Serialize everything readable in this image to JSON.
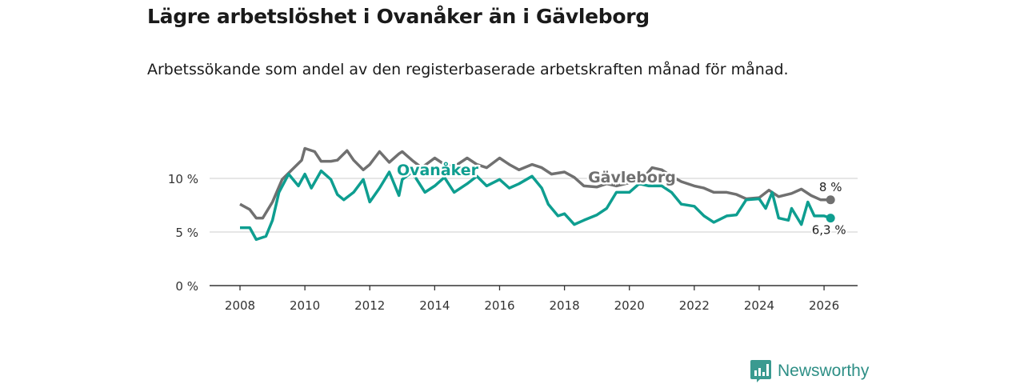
{
  "header": {
    "title": "Lägre arbetslöshet i Ovanåker än i Gävleborg",
    "subtitle": "Arbetssökande som andel av den registerbaserade arbetskraften månad för månad."
  },
  "brand": {
    "name": "Newsworthy",
    "icon": "bar-chart-speech-bubble-icon",
    "color": "#3a9a90"
  },
  "chart_data": {
    "type": "line",
    "title": "Lägre arbetslöshet i Ovanåker än i Gävleborg",
    "xlabel": "",
    "ylabel": "",
    "xlim": [
      2007.6,
      2027.0
    ],
    "ylim": [
      0,
      13
    ],
    "x_ticks": [
      2008,
      2010,
      2012,
      2014,
      2016,
      2018,
      2020,
      2022,
      2024,
      2026
    ],
    "x_tick_labels": [
      "2008",
      "2010",
      "2012",
      "2014",
      "2016",
      "2018",
      "2020",
      "2022",
      "2024",
      "2026"
    ],
    "y_ticks": [
      0,
      5,
      10
    ],
    "y_tick_labels": [
      "0 %",
      "5 %",
      "10 %"
    ],
    "grid": true,
    "series": [
      {
        "name": "Gävleborg",
        "color": "#707070",
        "end_label": "8 %",
        "x": [
          2008.0,
          2008.3,
          2008.5,
          2008.7,
          2009.0,
          2009.3,
          2009.6,
          2009.9,
          2010.0,
          2010.3,
          2010.5,
          2010.8,
          2011.0,
          2011.3,
          2011.5,
          2011.8,
          2012.0,
          2012.3,
          2012.6,
          2012.9,
          2013.0,
          2013.3,
          2013.6,
          2014.0,
          2014.3,
          2014.6,
          2015.0,
          2015.3,
          2015.6,
          2016.0,
          2016.3,
          2016.6,
          2017.0,
          2017.3,
          2017.6,
          2018.0,
          2018.3,
          2018.6,
          2019.0,
          2019.3,
          2019.6,
          2020.0,
          2020.4,
          2020.7,
          2021.0,
          2021.3,
          2021.6,
          2022.0,
          2022.3,
          2022.6,
          2023.0,
          2023.3,
          2023.6,
          2024.0,
          2024.3,
          2024.6,
          2025.0,
          2025.3,
          2025.6,
          2025.9,
          2026.2
        ],
        "values": [
          7.6,
          7.1,
          6.3,
          6.3,
          7.8,
          9.9,
          10.8,
          11.7,
          12.8,
          12.5,
          11.6,
          11.6,
          11.7,
          12.6,
          11.7,
          10.8,
          11.3,
          12.5,
          11.5,
          12.3,
          12.5,
          11.7,
          11.0,
          11.9,
          11.3,
          11.1,
          11.9,
          11.3,
          11.0,
          11.9,
          11.3,
          10.8,
          11.3,
          11.0,
          10.4,
          10.6,
          10.1,
          9.3,
          9.2,
          9.5,
          9.3,
          9.6,
          9.9,
          11.0,
          10.8,
          10.2,
          9.7,
          9.3,
          9.1,
          8.7,
          8.7,
          8.5,
          8.1,
          8.2,
          8.9,
          8.3,
          8.6,
          9.0,
          8.4,
          8.0,
          8.0
        ]
      },
      {
        "name": "Ovanåker",
        "color": "#0e9e90",
        "end_label": "6,3 %",
        "x": [
          2008.0,
          2008.3,
          2008.5,
          2008.8,
          2009.0,
          2009.2,
          2009.5,
          2009.8,
          2010.0,
          2010.2,
          2010.5,
          2010.8,
          2011.0,
          2011.2,
          2011.5,
          2011.8,
          2012.0,
          2012.3,
          2012.6,
          2012.9,
          2013.0,
          2013.3,
          2013.7,
          2014.0,
          2014.3,
          2014.6,
          2015.0,
          2015.3,
          2015.6,
          2016.0,
          2016.3,
          2016.6,
          2017.0,
          2017.3,
          2017.5,
          2017.8,
          2018.0,
          2018.3,
          2018.6,
          2019.0,
          2019.3,
          2019.6,
          2020.0,
          2020.3,
          2020.6,
          2020.9,
          2021.0,
          2021.3,
          2021.6,
          2022.0,
          2022.3,
          2022.6,
          2023.0,
          2023.3,
          2023.6,
          2024.0,
          2024.2,
          2024.4,
          2024.6,
          2024.9,
          2025.0,
          2025.3,
          2025.5,
          2025.7,
          2026.0,
          2026.2
        ],
        "values": [
          5.4,
          5.4,
          4.3,
          4.6,
          6.1,
          8.7,
          10.4,
          9.3,
          10.4,
          9.1,
          10.7,
          9.9,
          8.5,
          8.0,
          8.7,
          9.9,
          7.8,
          9.1,
          10.6,
          8.4,
          9.9,
          10.6,
          8.7,
          9.3,
          10.1,
          8.7,
          9.5,
          10.2,
          9.3,
          9.9,
          9.1,
          9.5,
          10.2,
          9.1,
          7.6,
          6.5,
          6.7,
          5.7,
          6.1,
          6.6,
          7.2,
          8.7,
          8.7,
          9.5,
          9.3,
          9.3,
          9.3,
          8.7,
          7.6,
          7.4,
          6.5,
          5.9,
          6.5,
          6.6,
          8.0,
          8.1,
          7.2,
          8.7,
          6.3,
          6.1,
          7.2,
          5.7,
          7.8,
          6.5,
          6.5,
          6.3
        ]
      }
    ],
    "annotations": [
      "Ovanåker",
      "Gävleborg",
      "8 %",
      "6,3 %"
    ]
  }
}
